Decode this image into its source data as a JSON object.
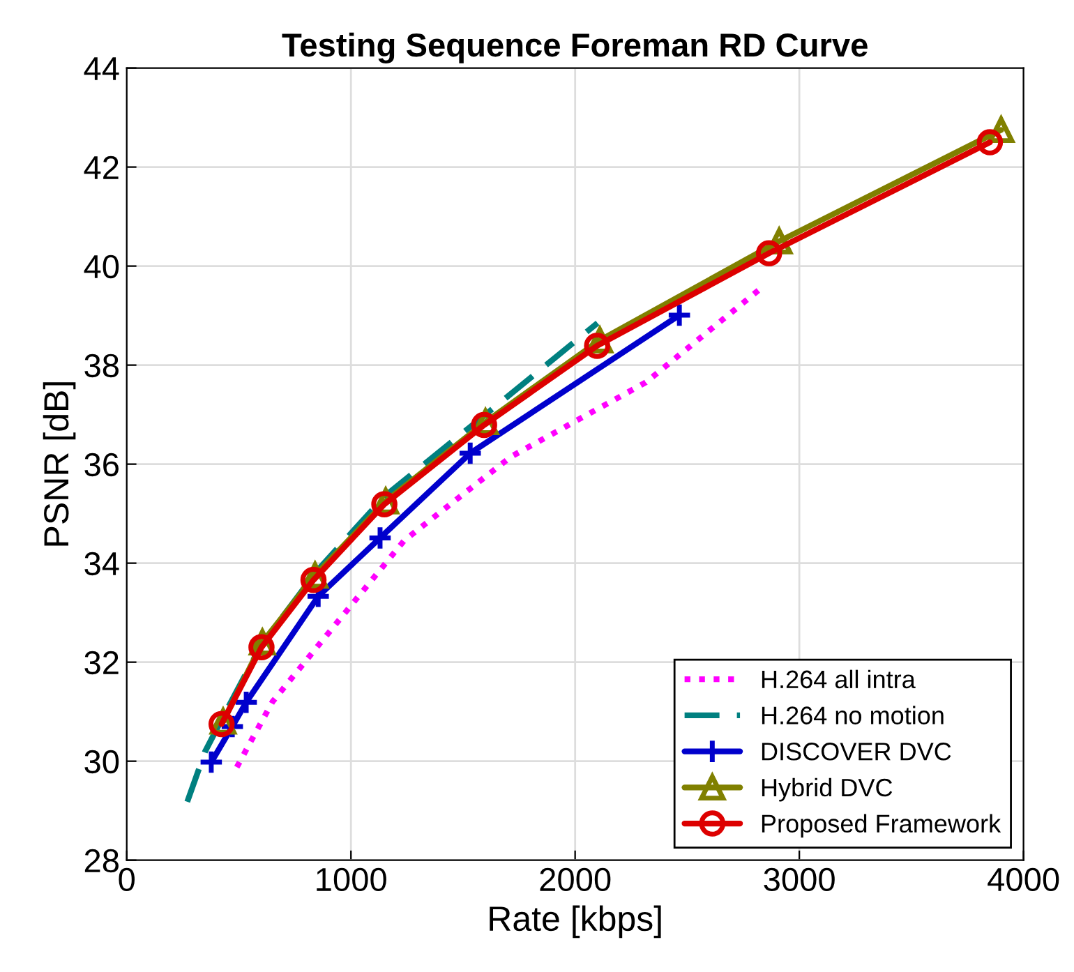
{
  "chart_data": {
    "type": "line",
    "title": "Testing Sequence Foreman RD Curve",
    "xlabel": "Rate [kbps]",
    "ylabel": "PSNR [dB]",
    "xlim": [
      0,
      4000
    ],
    "xticks": [
      0,
      1000,
      2000,
      3000,
      4000
    ],
    "ylim": [
      28,
      44
    ],
    "yticks": [
      28,
      30,
      32,
      34,
      36,
      38,
      40,
      42,
      44
    ],
    "grid": true,
    "legend": "bottom right",
    "series": [
      {
        "name": "H.264 all intra",
        "color": "#ff00ff",
        "line_style": "dotted",
        "marker": "none",
        "x": [
          491,
          650,
          864,
          1238,
          1714,
          2315,
          2823
        ],
        "values": [
          29.88,
          31.2,
          32.39,
          34.46,
          36.15,
          37.65,
          39.53
        ]
      },
      {
        "name": "H.264 no motion",
        "color": "#008080",
        "line_style": "dashed",
        "marker": "none",
        "x": [
          270,
          350,
          430,
          600,
          850,
          1150,
          1600,
          2100
        ],
        "values": [
          29.18,
          30.2,
          30.9,
          32.35,
          33.85,
          35.35,
          37.0,
          38.85
        ]
      },
      {
        "name": "DISCOVER DVC",
        "color": "#0000cc",
        "line_style": "solid",
        "marker": "cross",
        "x": [
          377,
          471,
          533,
          854,
          1130,
          1532,
          2465
        ],
        "values": [
          29.98,
          30.7,
          31.19,
          33.33,
          34.51,
          36.22,
          39.01
        ]
      },
      {
        "name": "Hybrid DVC",
        "color": "#808000",
        "line_style": "solid",
        "marker": "triangle",
        "x": [
          430,
          605,
          840,
          1155,
          1600,
          2110,
          2910,
          3900
        ],
        "values": [
          30.8,
          32.4,
          33.75,
          35.25,
          36.85,
          38.5,
          40.5,
          42.75
        ]
      },
      {
        "name": "Proposed Framework",
        "color": "#dd0000",
        "line_style": "solid",
        "marker": "circle",
        "x": [
          423,
          601,
          833,
          1149,
          1594,
          2098,
          2865,
          3850
        ],
        "values": [
          30.75,
          32.3,
          33.66,
          35.19,
          36.79,
          38.39,
          40.26,
          42.5
        ]
      }
    ]
  }
}
